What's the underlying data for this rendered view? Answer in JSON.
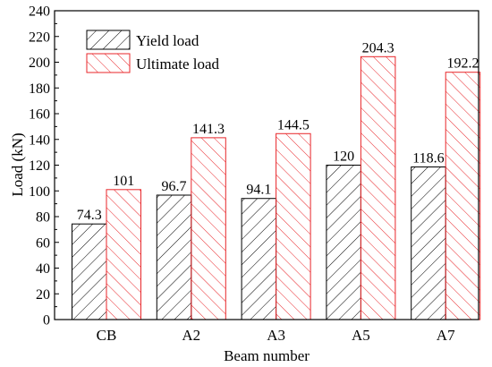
{
  "chart_data": {
    "type": "bar",
    "categories": [
      "CB",
      "A2",
      "A3",
      "A5",
      "A7"
    ],
    "series": [
      {
        "name": "Yield load",
        "values": [
          74.3,
          96.7,
          94.1,
          120,
          118.6
        ],
        "color": "#000000",
        "pattern": "hatch"
      },
      {
        "name": "Ultimate load",
        "values": [
          101,
          141.3,
          144.5,
          204.3,
          192.2
        ],
        "color": "#e8262a",
        "pattern": "hatch"
      }
    ],
    "data_labels": [
      [
        "74.3",
        "96.7",
        "94.1",
        "120",
        "118.6"
      ],
      [
        "101",
        "141.3",
        "144.5",
        "204.3",
        "192.2"
      ]
    ],
    "xlabel": "Beam number",
    "ylabel": "Load (kN)",
    "ylim": [
      0,
      240
    ],
    "yticks": [
      "0",
      "20",
      "40",
      "60",
      "80",
      "100",
      "120",
      "140",
      "160",
      "180",
      "200",
      "220",
      "240"
    ],
    "grid": false,
    "legend_position": "top-left"
  }
}
